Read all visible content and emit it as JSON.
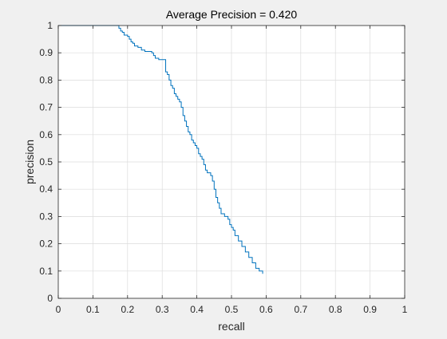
{
  "chart_data": {
    "type": "line",
    "title": "Average Precision = 0.420",
    "xlabel": "recall",
    "ylabel": "precision",
    "xlim": [
      0,
      1
    ],
    "ylim": [
      0,
      1
    ],
    "grid": true,
    "xticks": [
      "0",
      "0.1",
      "0.2",
      "0.3",
      "0.4",
      "0.5",
      "0.6",
      "0.7",
      "0.8",
      "0.9",
      "1"
    ],
    "yticks": [
      "0",
      "0.1",
      "0.2",
      "0.3",
      "0.4",
      "0.5",
      "0.6",
      "0.7",
      "0.8",
      "0.9",
      "1"
    ],
    "line_color": "#0072bd",
    "series": [
      {
        "x": [
          0.0,
          0.17,
          0.175,
          0.18,
          0.185,
          0.19,
          0.2,
          0.205,
          0.21,
          0.215,
          0.22,
          0.23,
          0.24,
          0.245,
          0.25,
          0.265,
          0.27,
          0.275,
          0.28,
          0.29,
          0.3,
          0.31,
          0.31,
          0.315,
          0.32,
          0.325,
          0.33,
          0.335,
          0.34,
          0.345,
          0.35,
          0.355,
          0.36,
          0.365,
          0.37,
          0.375,
          0.38,
          0.385,
          0.39,
          0.395,
          0.4,
          0.405,
          0.41,
          0.415,
          0.42,
          0.425,
          0.43,
          0.44,
          0.445,
          0.45,
          0.455,
          0.46,
          0.465,
          0.47,
          0.48,
          0.49,
          0.495,
          0.5,
          0.505,
          0.51,
          0.52,
          0.53,
          0.54,
          0.55,
          0.56,
          0.57,
          0.58,
          0.59
        ],
        "y": [
          1.0,
          1.0,
          0.99,
          0.98,
          0.975,
          0.965,
          0.96,
          0.95,
          0.94,
          0.935,
          0.925,
          0.92,
          0.91,
          0.91,
          0.905,
          0.905,
          0.9,
          0.89,
          0.88,
          0.875,
          0.875,
          0.87,
          0.83,
          0.82,
          0.8,
          0.78,
          0.77,
          0.75,
          0.74,
          0.73,
          0.72,
          0.7,
          0.67,
          0.65,
          0.63,
          0.61,
          0.6,
          0.58,
          0.57,
          0.56,
          0.55,
          0.53,
          0.52,
          0.51,
          0.49,
          0.47,
          0.46,
          0.45,
          0.43,
          0.4,
          0.37,
          0.35,
          0.33,
          0.31,
          0.3,
          0.29,
          0.27,
          0.26,
          0.25,
          0.23,
          0.21,
          0.19,
          0.17,
          0.15,
          0.13,
          0.11,
          0.1,
          0.09
        ]
      }
    ]
  }
}
